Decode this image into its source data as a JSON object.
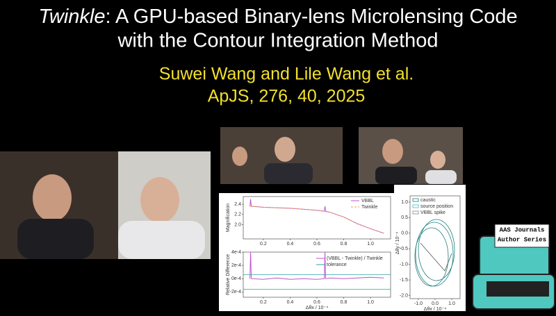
{
  "header": {
    "title_italic": "Twinkle",
    "title_rest": ": A GPU-based Binary-lens Microlensing Code",
    "title_line2": "with the Contour Integration Method"
  },
  "authors": "Suwei Wang and Lile Wang et al.",
  "citation": "ApJS, 276, 40, 2025",
  "figure": {
    "top_panel": {
      "ylabel": "Magnification",
      "xlim": [
        0.05,
        1.15
      ],
      "ylim": [
        1.72,
        2.55
      ],
      "xticks": [
        0.2,
        0.4,
        0.6,
        0.8,
        {
          "value": 1,
          "label": "1.0"
        }
      ],
      "yticks": [
        {
          "value": 2,
          "label": "2.0"
        },
        2.2,
        2.4
      ],
      "series": [
        {
          "name": "VBBL",
          "color": "#c050d0",
          "dashed": false,
          "x": [
            0.1,
            0.105,
            0.11,
            0.2,
            0.4,
            0.6,
            0.655,
            0.66,
            0.665,
            0.7,
            0.8,
            0.9,
            1.0,
            1.1
          ],
          "values": [
            2.36,
            2.5,
            2.36,
            2.34,
            2.32,
            2.28,
            2.26,
            2.36,
            2.26,
            2.24,
            2.15,
            2.02,
            1.92,
            1.83
          ]
        },
        {
          "name": "Twinkle",
          "color": "#e0a050",
          "dashed": true,
          "x": [
            0.1,
            0.2,
            0.4,
            0.6,
            0.7,
            0.8,
            0.9,
            1.0,
            1.1
          ],
          "values": [
            2.36,
            2.34,
            2.32,
            2.28,
            2.24,
            2.15,
            2.02,
            1.92,
            1.83
          ]
        }
      ]
    },
    "bottom_panel": {
      "ylabel": "Relative Difference",
      "xlabel": "Δθx / 10⁻⁴",
      "xlim": [
        0.05,
        1.15
      ],
      "ylim": [
        -0.00028,
        0.0004
      ],
      "xticks": [
        0.2,
        0.4,
        0.6,
        0.8,
        {
          "value": 1,
          "label": "1.0"
        }
      ],
      "yticks": [
        {
          "value": 0.0004,
          "label": "4e-4"
        },
        {
          "value": 0.0002,
          "label": "2e-4"
        },
        {
          "value": 0,
          "label": "0e-4"
        },
        {
          "value": -0.0002,
          "label": "-2e-4"
        }
      ],
      "series": [
        {
          "name": "(VBBL - Twinkle) / Twinkle",
          "color": "#c050d0",
          "x": [
            0.1,
            0.105,
            0.11,
            0.2,
            0.3,
            0.4,
            0.5,
            0.6,
            0.655,
            0.66,
            0.665,
            0.7,
            0.8,
            0.9,
            1.0,
            1.1
          ],
          "values": [
            0,
            0.0004,
            0,
            -1e-05,
            1e-05,
            -1e-05,
            0,
            -1e-05,
            0,
            0.0004,
            0,
            1e-05,
            0,
            1e-05,
            2e-05,
            1e-05
          ]
        }
      ],
      "tolerance": {
        "name": "tolerance",
        "color": "#30a0a0",
        "levels": [
          6e-05,
          -0.00016
        ]
      }
    },
    "right_panel": {
      "ylabel": "Δθy / 10⁻⁴",
      "xlabel": "Δθx / 10⁻⁴",
      "xticks": [
        {
          "value": -1,
          "label": "-1.0"
        },
        {
          "value": 0,
          "label": "0.0"
        },
        {
          "value": 1,
          "label": "1.0"
        }
      ],
      "yticks": [
        {
          "value": 1,
          "label": "1.0"
        },
        0.5,
        {
          "value": 0,
          "label": "0.0"
        },
        -0.5,
        {
          "value": -1,
          "label": "-1.0"
        },
        -1.5,
        {
          "value": -2,
          "label": "-2.0"
        }
      ],
      "xlim": [
        -1.5,
        1.5
      ],
      "ylim": [
        -2.1,
        1.2
      ],
      "legend": [
        "caustic",
        "source position",
        "VBBL spike"
      ]
    }
  },
  "badge": {
    "line1": "AAS Journals",
    "line2": "Author Series"
  }
}
